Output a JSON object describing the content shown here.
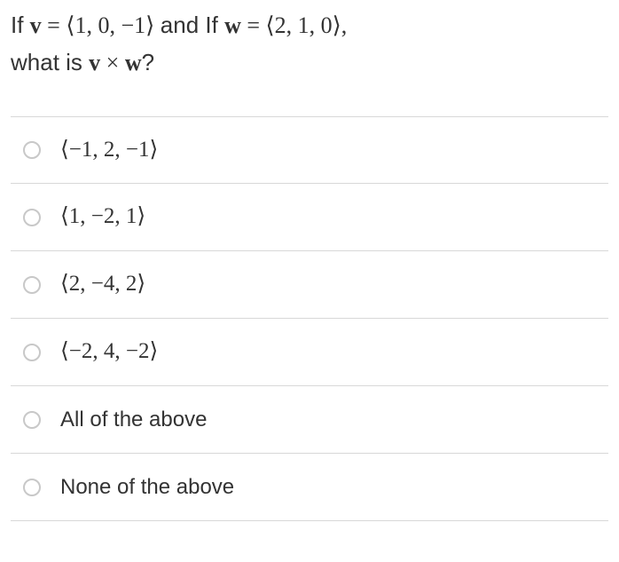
{
  "question": {
    "line1_prefix": "If ",
    "v_label": "v",
    "eq1": " = ⟨1, 0, −1⟩ ",
    "mid": "and If ",
    "w_label": "w",
    "eq2": " = ⟨2, 1, 0⟩,",
    "line2_prefix": "what is ",
    "cross_v": "v",
    "cross_op": " × ",
    "cross_w": "w",
    "line2_suffix": "?"
  },
  "options": [
    {
      "label": "⟨−1, 2, −1⟩",
      "is_math": true
    },
    {
      "label": "⟨1, −2, 1⟩",
      "is_math": true
    },
    {
      "label": "⟨2, −4, 2⟩",
      "is_math": true
    },
    {
      "label": "⟨−2, 4, −2⟩",
      "is_math": true
    },
    {
      "label": "All of the above",
      "is_math": false
    },
    {
      "label": "None of the above",
      "is_math": false
    }
  ],
  "colors": {
    "text": "#333333",
    "border": "#d8d8d8",
    "radio_border": "#c8c8c8",
    "background": "#ffffff"
  }
}
